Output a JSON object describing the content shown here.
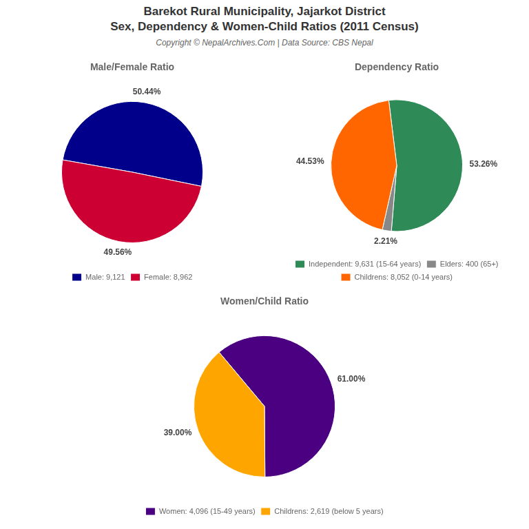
{
  "title": [
    "Barekot Rural Municipality, Jajarkot District",
    "Sex, Dependency & Women-Child Ratios (2011 Census)"
  ],
  "subtitle": "Copyright © NepalArchives.Com | Data Source: CBS Nepal",
  "chart_data": [
    {
      "type": "pie",
      "title": "Male/Female Ratio",
      "categories": [
        "Male: 9,121",
        "Female: 8,962"
      ],
      "values": [
        50.44,
        49.56
      ],
      "value_labels": [
        "50.44%",
        "49.56%"
      ],
      "colors": [
        "#00008B",
        "#CC0033"
      ],
      "data_labels": true,
      "legend": "bottom"
    },
    {
      "type": "pie",
      "title": "Dependency Ratio",
      "categories": [
        "Independent: 9,631 (15-64 years)",
        "Elders: 400 (65+)",
        "Childrens: 8,052 (0-14 years)"
      ],
      "values": [
        53.26,
        2.21,
        44.53
      ],
      "value_labels": [
        "53.26%",
        "2.21%",
        "44.53%"
      ],
      "colors": [
        "#2E8B57",
        "#888888",
        "#FF6600"
      ],
      "data_labels": true,
      "legend": "bottom"
    },
    {
      "type": "pie",
      "title": "Women/Child Ratio",
      "categories": [
        "Women: 4,096 (15-49 years)",
        "Childrens: 2,619 (below 5 years)"
      ],
      "values": [
        61.0,
        39.0
      ],
      "value_labels": [
        "61.00%",
        "39.00%"
      ],
      "colors": [
        "#4B0082",
        "#FFA500"
      ],
      "data_labels": true,
      "legend": "bottom"
    }
  ]
}
